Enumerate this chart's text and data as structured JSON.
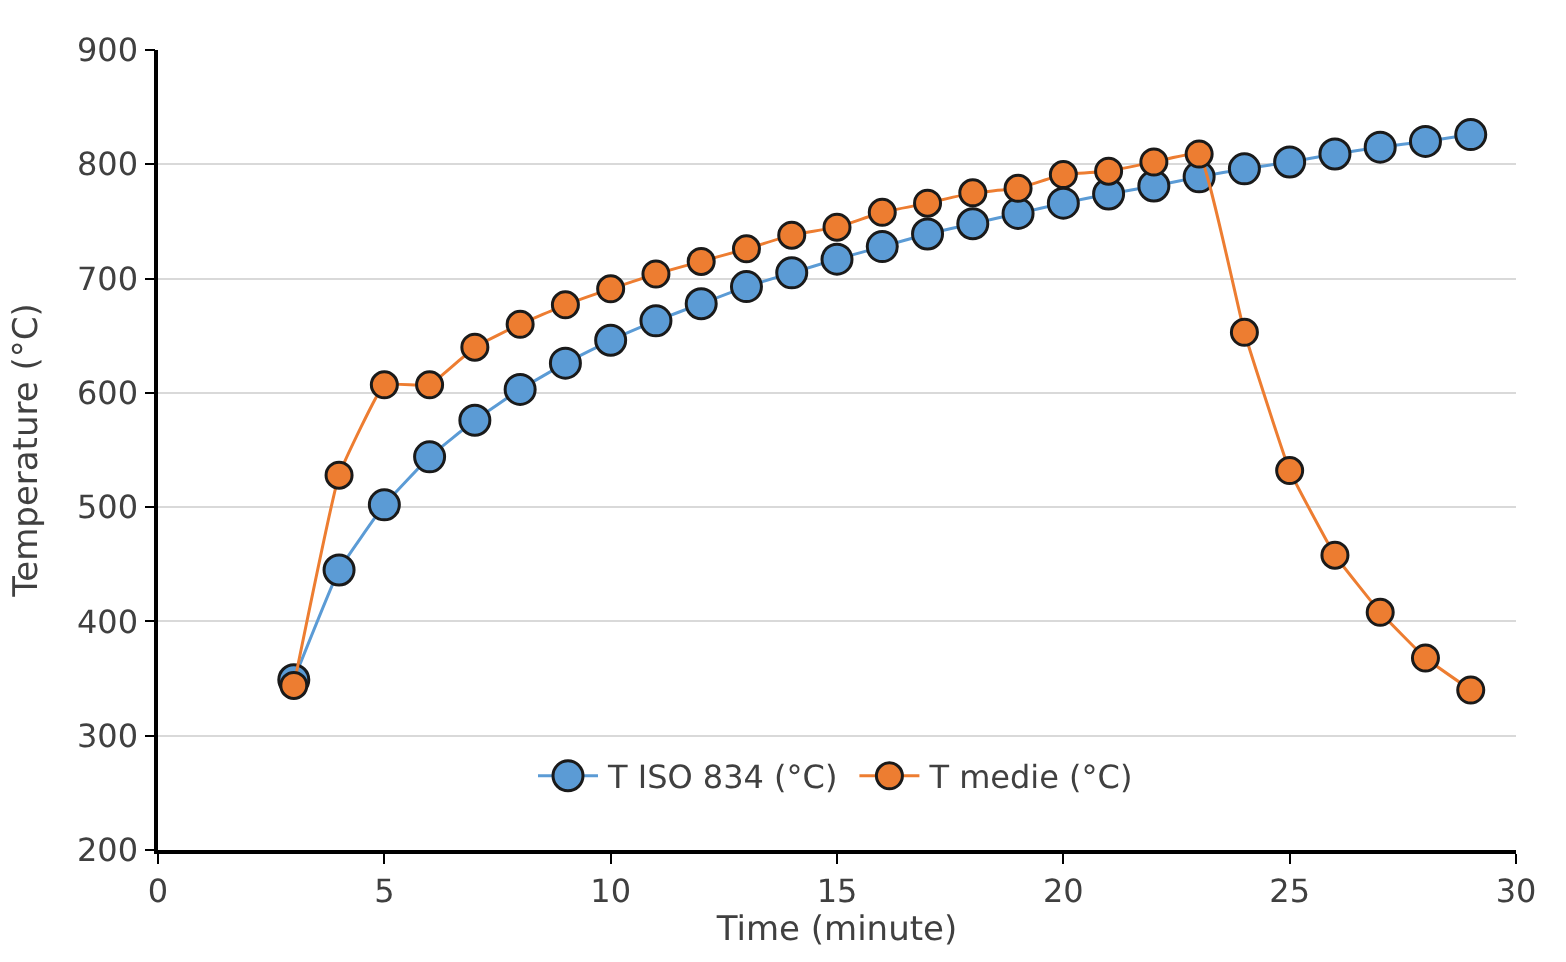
{
  "chart_data": {
    "type": "line",
    "xlabel": "Time (minute)",
    "ylabel": "Temperature (°C)",
    "x": [
      3,
      4,
      5,
      6,
      7,
      8,
      9,
      10,
      11,
      12,
      13,
      14,
      15,
      16,
      17,
      18,
      19,
      20,
      21,
      22,
      23,
      24,
      25,
      26,
      27,
      28,
      29
    ],
    "series": [
      {
        "name": "T ISO 834 (°C)",
        "color": "#5b9bd5",
        "values": [
          349,
          445,
          502,
          544,
          576,
          603,
          626,
          646,
          663,
          678,
          693,
          705,
          717,
          728,
          739,
          748,
          757,
          766,
          774,
          781,
          789,
          796,
          802,
          809,
          815,
          820,
          826
        ]
      },
      {
        "name": "T medie (°C)",
        "color": "#ed7d31",
        "values": [
          344,
          528,
          607,
          607,
          640,
          660,
          677,
          691,
          704,
          715,
          726,
          738,
          745,
          758,
          766,
          775,
          779,
          791,
          794,
          802,
          809,
          653,
          532,
          458,
          408,
          368,
          340
        ]
      }
    ],
    "xlim": [
      0,
      30
    ],
    "xticks": [
      0,
      5,
      10,
      15,
      20,
      25,
      30
    ],
    "ylim": [
      200,
      900
    ],
    "yticks": [
      200,
      300,
      400,
      500,
      600,
      700,
      800,
      900
    ],
    "grid": "y",
    "legend": "bottom",
    "marker": "circle",
    "line_style": "solid"
  }
}
